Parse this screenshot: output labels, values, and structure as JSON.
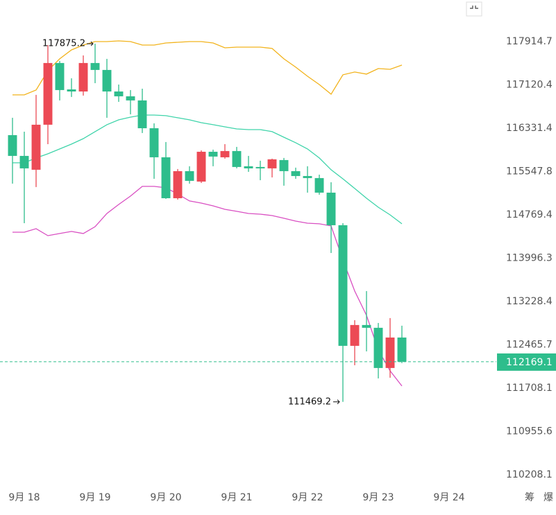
{
  "chart_data": {
    "type": "candlestick",
    "x": [
      17.8333,
      18,
      18.1667,
      18.3333,
      18.5,
      18.6667,
      18.8333,
      19,
      19.1667,
      19.3333,
      19.5,
      19.6667,
      19.8333,
      20,
      20.1667,
      20.3333,
      20.5,
      20.6667,
      20.8333,
      21,
      21.1667,
      21.3333,
      21.5,
      21.6667,
      21.8333,
      22,
      22.1667,
      22.3333,
      22.5,
      22.6667,
      22.8333,
      23,
      23.1667,
      23.3333
    ],
    "open": [
      116206,
      115830,
      115580,
      116395,
      117521,
      117038,
      117000,
      117521,
      117394,
      117000,
      116912,
      116837,
      116331,
      115805,
      115068,
      115555,
      115367,
      115905,
      115805,
      115918,
      115643,
      115630,
      115605,
      115755,
      115555,
      115467,
      115430,
      115168,
      114584,
      112448,
      112814,
      112765,
      112060,
      112594
    ],
    "high": [
      116521,
      116269,
      116938,
      117851,
      117559,
      117241,
      117660,
      117875.2,
      117597,
      117127,
      117026,
      117051,
      116420,
      116081,
      115593,
      115643,
      115930,
      115943,
      116043,
      115993,
      115830,
      115743,
      115780,
      115793,
      115618,
      115643,
      115492,
      115355,
      114621,
      112899,
      113413,
      112850,
      112936,
      112802
    ],
    "low": [
      115330,
      114621,
      115268,
      116043,
      116837,
      116900,
      116925,
      117152,
      116521,
      116811,
      116584,
      116244,
      115417,
      115056,
      115043,
      115330,
      115342,
      115643,
      115780,
      115605,
      115542,
      115392,
      115442,
      115293,
      115417,
      115168,
      115131,
      114089,
      111469.2,
      112108,
      112351,
      111878,
      111890,
      112145
    ],
    "close": [
      115830,
      115605,
      116395,
      117521,
      117026,
      117000,
      117521,
      117394,
      117000,
      116912,
      116837,
      116331,
      115805,
      115068,
      115555,
      115380,
      115905,
      115818,
      115918,
      115630,
      115605,
      115605,
      115768,
      115555,
      115467,
      115430,
      115168,
      114584,
      112448,
      112814,
      112765,
      112060,
      112594,
      112169.1
    ],
    "up_color": "#ec4a55",
    "down_color": "#2ebd8c",
    "lines": [
      {
        "color": "#f2b31c",
        "values": [
          116938,
          116938,
          117026,
          117381,
          117597,
          117762,
          117851,
          117915,
          117915,
          117927,
          117915,
          117851,
          117851,
          117889,
          117902,
          117915,
          117915,
          117889,
          117800,
          117813,
          117813,
          117813,
          117788,
          117597,
          117445,
          117279,
          117127,
          116950,
          117305,
          117356,
          117318,
          117419,
          117406,
          117483
        ]
      },
      {
        "color": "#3fd4aa",
        "values": [
          115705,
          115705,
          115793,
          115868,
          115956,
          116043,
          116143,
          116269,
          116395,
          116483,
          116533,
          116571,
          116571,
          116559,
          116521,
          116483,
          116432,
          116395,
          116357,
          116319,
          116306,
          116306,
          116269,
          116168,
          116068,
          115956,
          115793,
          115580,
          115417,
          115243,
          115068,
          114906,
          114769,
          114609
        ]
      },
      {
        "color": "#d94fc2",
        "values": [
          114460,
          114460,
          114522,
          114398,
          114436,
          114473,
          114436,
          114559,
          114794,
          114956,
          115106,
          115280,
          115280,
          115255,
          115143,
          115019,
          114981,
          114931,
          114869,
          114832,
          114794,
          114782,
          114757,
          114708,
          114658,
          114621,
          114609,
          114572,
          113966,
          113413,
          112984,
          112375,
          112011,
          111745
        ]
      }
    ],
    "ylim": [
      109970,
      118682
    ],
    "log_scale": true,
    "yticks": [
      117914.7,
      117120.4,
      116331.4,
      115547.8,
      114769.4,
      113996.3,
      113228.4,
      112465.7,
      111708.1,
      110955.6,
      110208.1
    ],
    "xlim": [
      17.6569,
      24.6667
    ],
    "xticks": [
      {
        "value": 18,
        "label": "9月 18"
      },
      {
        "value": 19,
        "label": "9月 19"
      },
      {
        "value": 20,
        "label": "9月 20"
      },
      {
        "value": 21,
        "label": "9月 21"
      },
      {
        "value": 22,
        "label": "9月 22"
      },
      {
        "value": 23,
        "label": "9月 23"
      },
      {
        "value": 24,
        "label": "9月 24"
      }
    ],
    "grid": false,
    "price_line_color": "#2ebd8c",
    "footer_labels": [
      "筹",
      "爆"
    ]
  }
}
